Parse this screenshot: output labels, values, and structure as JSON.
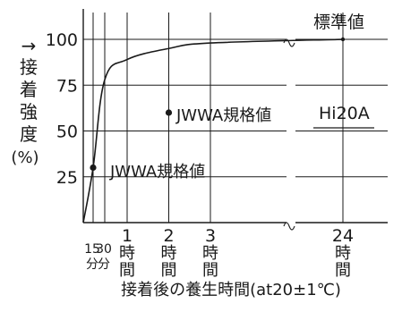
{
  "chart_data": {
    "type": "line",
    "title": "",
    "xlabel": "接着後の養生時間(at20±1℃)",
    "ylabel_arrow": "→",
    "ylabel_chars": [
      "接",
      "着",
      "強",
      "度"
    ],
    "ylabel_unit": "(%)",
    "ylim": [
      0,
      100
    ],
    "y_ticks": [
      "100",
      "75",
      "50",
      "25"
    ],
    "x_ticks": [
      {
        "top": "15",
        "bottom": "分"
      },
      {
        "top": "30",
        "bottom": "分"
      },
      {
        "top": "1",
        "lines": [
          "時",
          "間"
        ]
      },
      {
        "top": "2",
        "lines": [
          "時",
          "間"
        ]
      },
      {
        "top": "3",
        "lines": [
          "時",
          "間"
        ]
      },
      {
        "top": "24",
        "lines": [
          "時",
          "間"
        ]
      }
    ],
    "x_break": "axis broken between 3 and 24 hours",
    "grid": "horizontal lines at 25, 50, 75, 100; vertical lines at each x tick",
    "series": [
      {
        "name": "",
        "x_hours": [
          0,
          0.25,
          0.5,
          1,
          2,
          3,
          24
        ],
        "values": [
          0,
          30,
          78,
          89,
          95,
          98,
          100
        ]
      }
    ],
    "annotations": {
      "standard_value": "標準値",
      "jwwa_point_low": {
        "label": "JWWA規格値",
        "x_hours": 0.25,
        "y": 30
      },
      "jwwa_point_high": {
        "label": "JWWA規格値",
        "x_hours": 2,
        "y": 60
      },
      "product_name": "Hi20A"
    }
  }
}
